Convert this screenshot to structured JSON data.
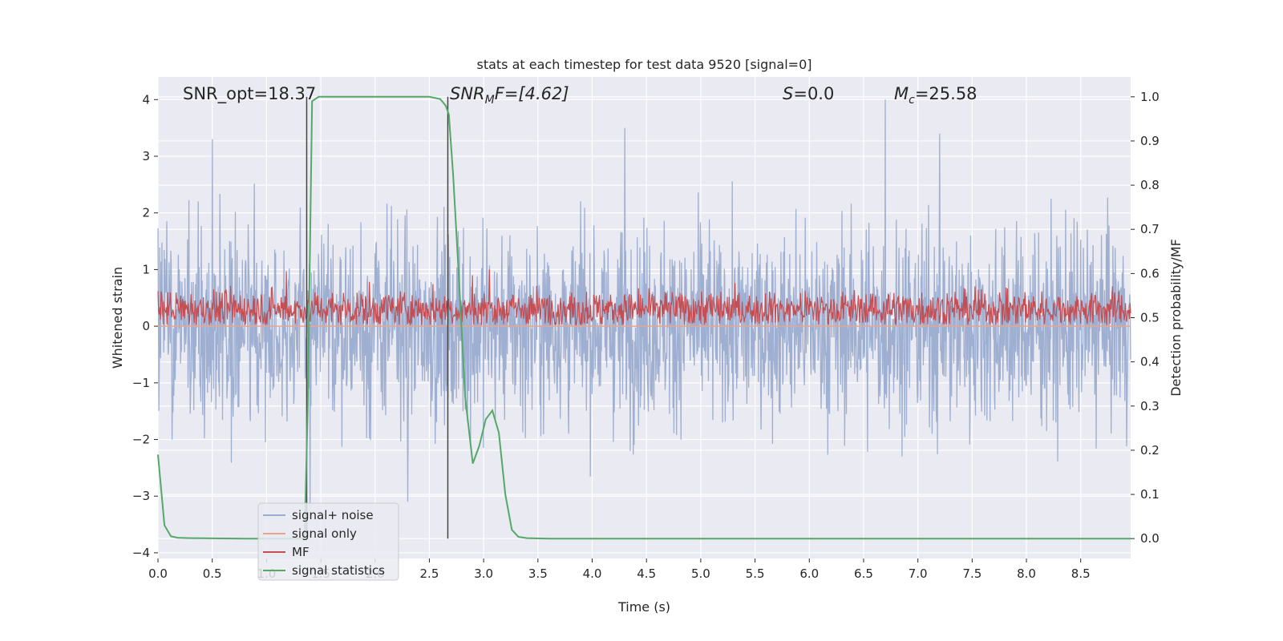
{
  "chart_data": {
    "type": "line",
    "title": "stats at each timestep for test data 9520 [signal=0]",
    "xlabel": "Time (s)",
    "ylabel": "Whitened strain",
    "y2label": "Detection probability/MF",
    "xlim": [
      0.0,
      8.96
    ],
    "ylim": [
      -4.1,
      4.4
    ],
    "y2lim": [
      -0.045,
      1.045
    ],
    "xticks": [
      0.0,
      0.5,
      1.0,
      1.5,
      2.0,
      2.5,
      3.0,
      3.5,
      4.0,
      4.5,
      5.0,
      5.5,
      6.0,
      6.5,
      7.0,
      7.5,
      8.0,
      8.5
    ],
    "xtick_labels": [
      "0.0",
      "0.5",
      "1.0",
      "1.5",
      "2.0",
      "2.5",
      "3.0",
      "3.5",
      "4.0",
      "4.5",
      "5.0",
      "5.5",
      "6.0",
      "6.5",
      "7.0",
      "7.5",
      "8.0",
      "8.5"
    ],
    "yticks": [
      4,
      3,
      2,
      1,
      0,
      -1,
      -2,
      -3,
      -4
    ],
    "ytick_labels": [
      "4",
      "3",
      "2",
      "1",
      "0",
      "−1",
      "−2",
      "−3",
      "−4"
    ],
    "y2ticks": [
      1.0,
      0.9,
      0.8,
      0.7,
      0.6,
      0.5,
      0.4,
      0.3,
      0.2,
      0.1,
      0.0
    ],
    "y2tick_labels": [
      "1.0",
      "0.9",
      "0.8",
      "0.7",
      "0.6",
      "0.5",
      "0.4",
      "0.3",
      "0.2",
      "0.1",
      "0.0"
    ],
    "grid": true,
    "annotations": {
      "snr_opt": "SNR_opt=18.37",
      "snr_mf_main": "SNR",
      "snr_mf_sub": "M",
      "snr_mf_rest": "F=[4.62]",
      "s_main": "S",
      "s_rest": "=0.0",
      "mc_main": "M",
      "mc_sub": "c",
      "mc_rest": "=25.58"
    },
    "vertical_lines_x": [
      1.37,
      2.67
    ],
    "series": [
      {
        "name": "signal+ noise",
        "color": "#9aaccf",
        "axis": "left",
        "description": "dense whitened noise, roughly within -3.6 to 3.9",
        "peaks_x": [
          0.5,
          1.4,
          2.3,
          4.3,
          6.7,
          7.2
        ],
        "peaks_y": [
          3.3,
          -3.2,
          -3.1,
          3.5,
          4.0,
          3.4
        ]
      },
      {
        "name": "signal only",
        "color": "#e9a48d",
        "axis": "left",
        "x": [
          0.0,
          8.96
        ],
        "y": [
          0.0,
          0.0
        ]
      },
      {
        "name": "MF",
        "color": "#c44e52",
        "axis": "left",
        "description": "matched-filter output, mostly between 0 and 0.8",
        "peaks_x": [
          1.18,
          2.9,
          3.05
        ],
        "peaks_y": [
          0.97,
          0.9,
          1.0
        ]
      },
      {
        "name": "signal statistics",
        "color": "#55a868",
        "axis": "right",
        "x": [
          0.0,
          0.06,
          0.12,
          0.18,
          0.3,
          0.5,
          0.8,
          1.0,
          1.2,
          1.35,
          1.38,
          1.42,
          1.48,
          1.55,
          2.0,
          2.5,
          2.6,
          2.65,
          2.68,
          2.72,
          2.77,
          2.83,
          2.9,
          2.96,
          3.02,
          3.08,
          3.14,
          3.2,
          3.26,
          3.32,
          3.4,
          3.6,
          4.0,
          5.0,
          6.0,
          7.0,
          8.0,
          8.96
        ],
        "y": [
          0.19,
          0.03,
          0.005,
          0.002,
          0.001,
          0.0005,
          0.0,
          0.0,
          0.0,
          0.0,
          0.3,
          0.99,
          1.0,
          1.0,
          1.0,
          1.0,
          0.995,
          0.98,
          0.96,
          0.82,
          0.6,
          0.32,
          0.17,
          0.21,
          0.27,
          0.29,
          0.24,
          0.1,
          0.02,
          0.004,
          0.001,
          0.0,
          0.0,
          0.0,
          0.0,
          0.0,
          0.0,
          0.0
        ]
      }
    ],
    "legend": [
      "signal+ noise",
      "signal only",
      "MF",
      "signal statistics"
    ],
    "legend_position": "lower-left"
  }
}
